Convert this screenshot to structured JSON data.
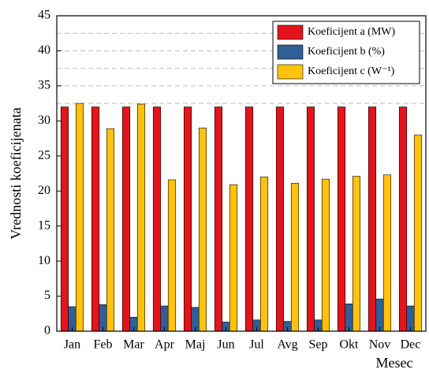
{
  "chart_data": {
    "type": "bar",
    "x_label": "Mesec",
    "y_label": "Vrednosti koeficijenata",
    "categories": [
      "Jan",
      "Feb",
      "Mar",
      "Apr",
      "Maj",
      "Jun",
      "Jul",
      "Avg",
      "Sep",
      "Okt",
      "Nov",
      "Dec"
    ],
    "series": [
      {
        "name": "Koeficijent a (MW)",
        "color": "#e3141c",
        "values": [
          32,
          32,
          32,
          32,
          32,
          32,
          32,
          32,
          32,
          32,
          32,
          32
        ]
      },
      {
        "name": "Koeficijent b (%)",
        "color": "#2f5f97",
        "values": [
          3.5,
          3.8,
          2.0,
          3.6,
          3.4,
          1.3,
          1.6,
          1.4,
          1.6,
          3.9,
          4.6,
          3.6
        ]
      },
      {
        "name": "Koeficijent c (W⁻¹)",
        "color": "#ffc20e",
        "values": [
          32.5,
          28.9,
          32.4,
          21.6,
          29.0,
          20.9,
          22.0,
          21.1,
          21.7,
          22.1,
          22.3,
          28.0
        ]
      }
    ],
    "ylim": [
      0,
      45
    ],
    "yticks": [
      0,
      5,
      10,
      15,
      20,
      25,
      30,
      35,
      40,
      45
    ],
    "grid_lines": [
      32.5,
      35,
      37.5,
      40,
      42.5
    ],
    "legend": "upper right"
  }
}
